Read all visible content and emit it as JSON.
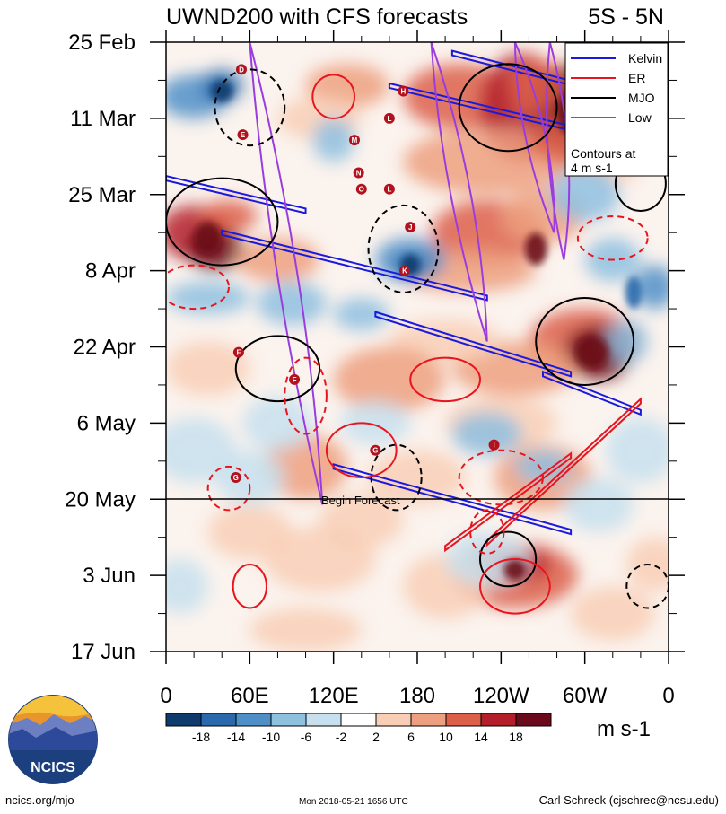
{
  "header": {
    "title": "UWND200 with CFS forecasts",
    "region": "5S - 5N"
  },
  "legend": {
    "items": [
      {
        "label": "Kelvin",
        "color": "#1a1adc"
      },
      {
        "label": "ER",
        "color": "#e8141e"
      },
      {
        "label": "MJO",
        "color": "#000000"
      },
      {
        "label": "Low",
        "color": "#9a3cde"
      }
    ],
    "note_line1": "Contours at",
    "note_line2": "4 m s-1"
  },
  "forecast_label": "Begin Forecast",
  "colorbar": {
    "ticks": [
      "-18",
      "-14",
      "-10",
      "-6",
      "-2",
      "2",
      "6",
      "10",
      "14",
      "18"
    ],
    "units": "m s-1",
    "colors": [
      "#0f3a6e",
      "#2a6aac",
      "#4f8fc8",
      "#8ec0e0",
      "#c7e0ef",
      "#ffffff",
      "#f8cfb6",
      "#eda07f",
      "#dc5f4a",
      "#b41e2a",
      "#6b0a1a"
    ]
  },
  "footer": {
    "left": "ncics.org/mjo",
    "center": "Mon 2018-05-21 1656 UTC",
    "right": "Carl Schreck (cjschrec@ncsu.edu)"
  },
  "logo": {
    "text": "NCICS"
  },
  "chart_data": {
    "type": "heatmap",
    "title": "UWND200 with CFS forecasts",
    "subtitle": "5S - 5N",
    "units": "m s-1",
    "x_ticks": [
      "0",
      "60E",
      "120E",
      "180",
      "120W",
      "60W",
      "0"
    ],
    "x_range_deg": [
      0,
      360
    ],
    "y_ticks": [
      "25 Feb",
      "11 Mar",
      "25 Mar",
      "8 Apr",
      "22 Apr",
      "6 May",
      "20 May",
      "3 Jun",
      "17 Jun"
    ],
    "y_range_days": [
      0,
      112
    ],
    "forecast_start": "20 May",
    "shading_levels": [
      -18,
      -14,
      -10,
      -6,
      -2,
      2,
      6,
      10,
      14,
      18
    ],
    "contour_interval": 4,
    "series": [
      {
        "name": "Kelvin",
        "color": "#1a1adc",
        "lines": [
          {
            "from": [
              205,
              2
            ],
            "to": [
              360,
              12
            ]
          },
          {
            "from": [
              160,
              8
            ],
            "to": [
              360,
              20
            ]
          },
          {
            "from": [
              0,
              25
            ],
            "to": [
              100,
              31
            ]
          },
          {
            "from": [
              40,
              35
            ],
            "to": [
              230,
              47
            ]
          },
          {
            "from": [
              150,
              50
            ],
            "to": [
              290,
              61
            ]
          },
          {
            "from": [
              270,
              61
            ],
            "to": [
              340,
              68
            ]
          },
          {
            "from": [
              120,
              78
            ],
            "to": [
              290,
              90
            ]
          }
        ]
      },
      {
        "name": "ER",
        "color": "#e8141e",
        "lines": [
          {
            "from": [
              290,
              76
            ],
            "to": [
              200,
              93
            ]
          },
          {
            "from": [
              340,
              66
            ],
            "to": [
              230,
              92
            ]
          }
        ]
      },
      {
        "name": "MJO",
        "color": "#000000",
        "lines": []
      },
      {
        "name": "Low",
        "color": "#9a3cde",
        "lines": [
          {
            "from": [
              60,
              0
            ],
            "to": [
              112,
              85
            ]
          },
          {
            "from": [
              190,
              0
            ],
            "to": [
              230,
              55
            ]
          },
          {
            "from": [
              250,
              0
            ],
            "to": [
              278,
              35
            ]
          },
          {
            "from": [
              275,
              0
            ],
            "to": [
              285,
              40
            ]
          }
        ]
      }
    ],
    "storm_markers": [
      {
        "label": "D",
        "lon": 54,
        "day": 5
      },
      {
        "label": "H",
        "lon": 170,
        "day": 9
      },
      {
        "label": "L",
        "lon": 160,
        "day": 14
      },
      {
        "label": "E",
        "lon": 55,
        "day": 17
      },
      {
        "label": "M",
        "lon": 135,
        "day": 18
      },
      {
        "label": "N",
        "lon": 138,
        "day": 24
      },
      {
        "label": "O",
        "lon": 140,
        "day": 27
      },
      {
        "label": "L",
        "lon": 160,
        "day": 27
      },
      {
        "label": "J",
        "lon": 175,
        "day": 34
      },
      {
        "label": "K",
        "lon": 171,
        "day": 42
      },
      {
        "label": "F",
        "lon": 52,
        "day": 57
      },
      {
        "label": "F",
        "lon": 92,
        "day": 62
      },
      {
        "label": "G",
        "lon": 150,
        "day": 75
      },
      {
        "label": "I",
        "lon": 235,
        "day": 74
      },
      {
        "label": "G",
        "lon": 50,
        "day": 80
      }
    ],
    "legend_position": "top-right"
  }
}
